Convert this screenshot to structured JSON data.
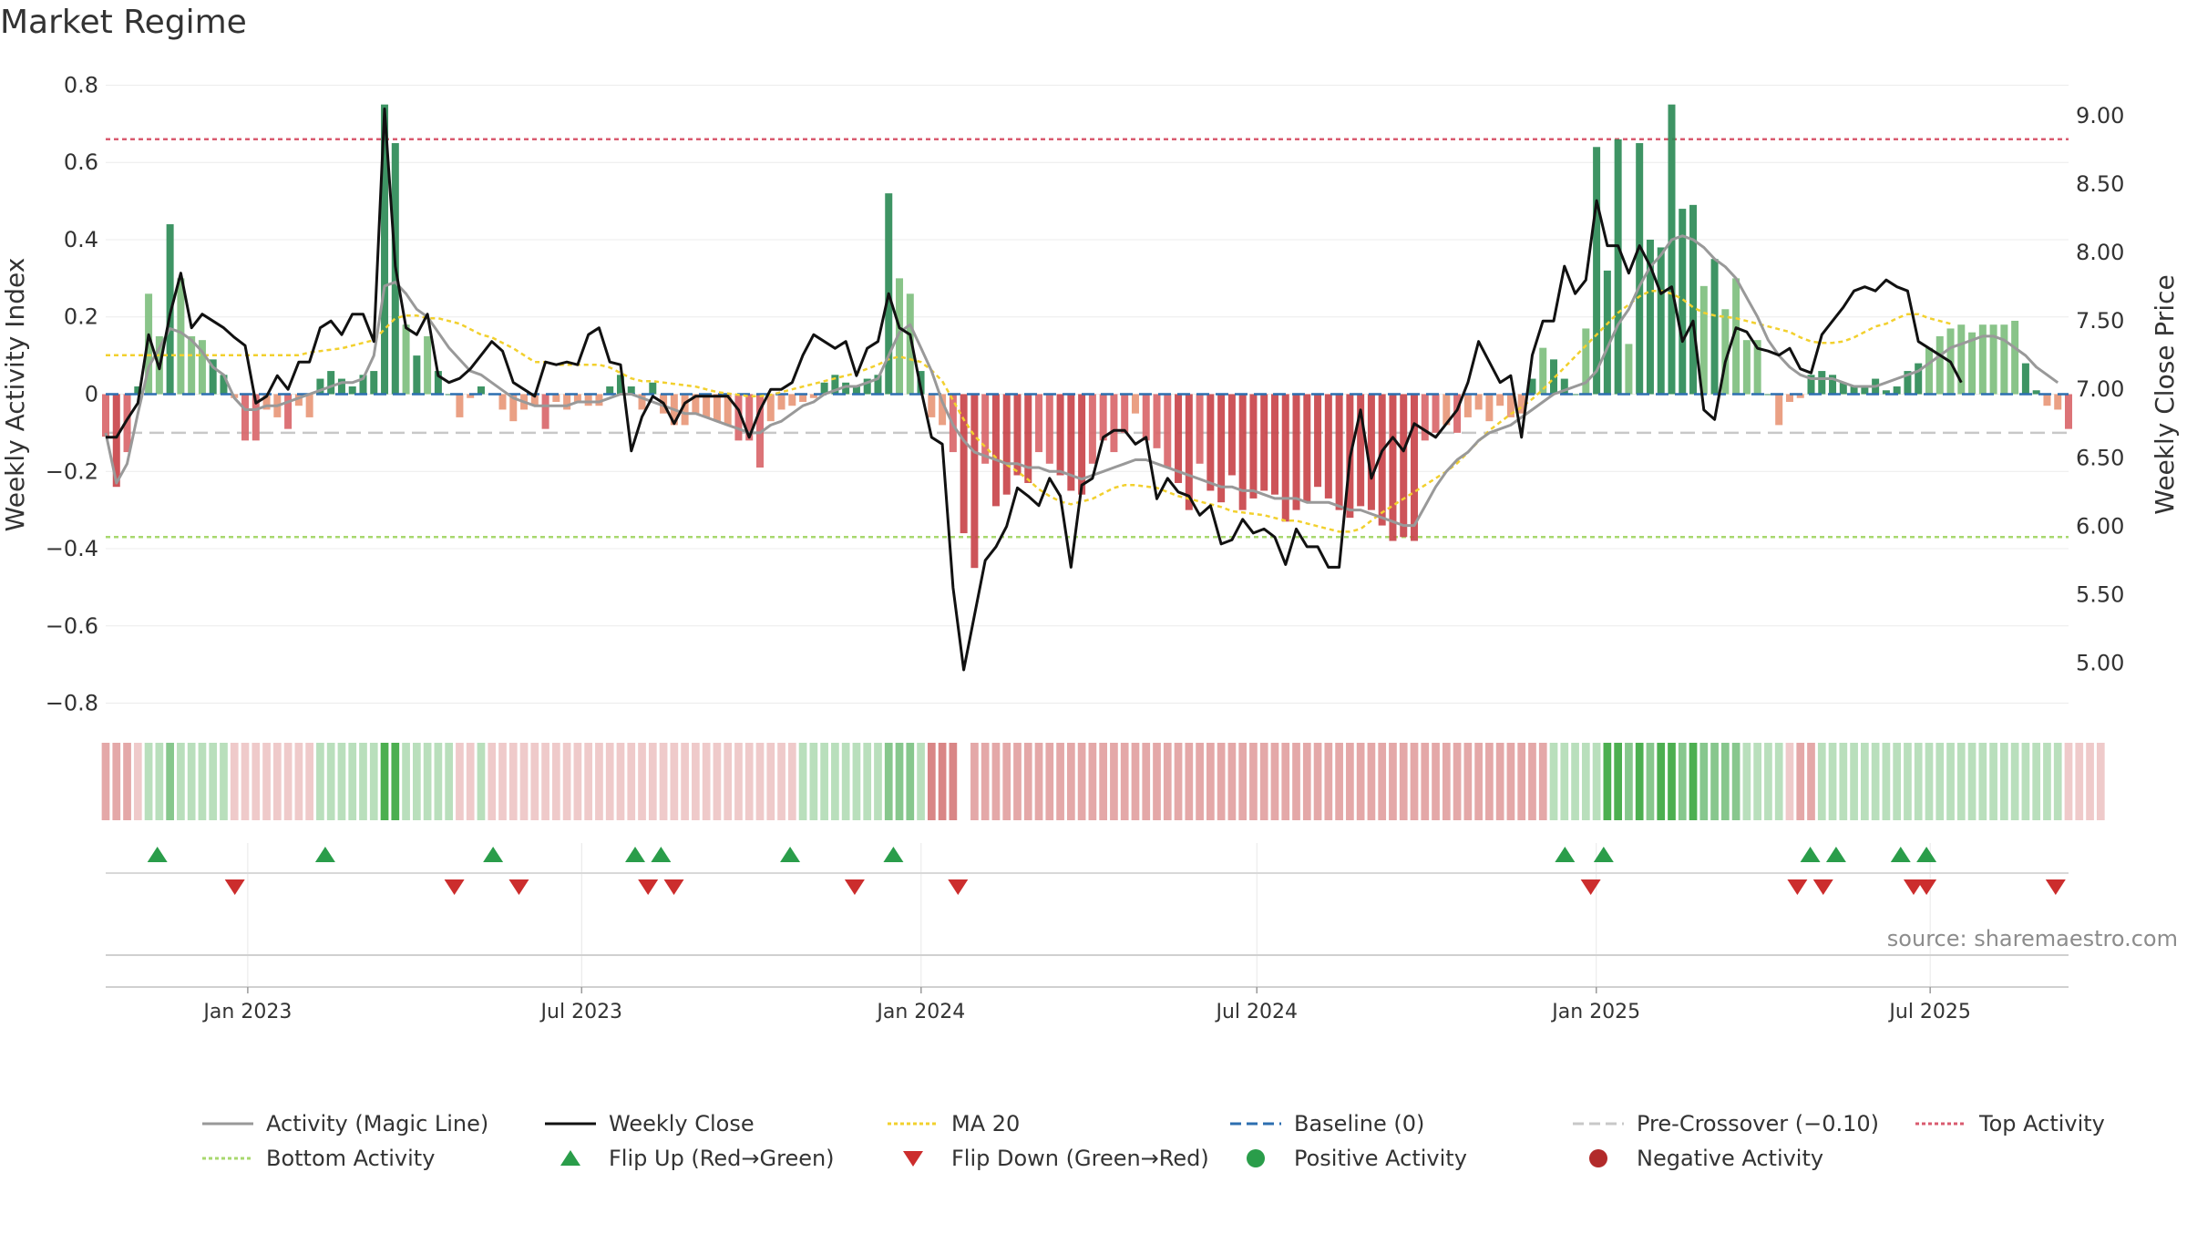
{
  "header": {
    "title": "Market Regime"
  },
  "source": "source: sharemaestro.com",
  "colors": {
    "strong_green": "#2e8b57",
    "green": "#4caf50",
    "light_green": "#7fbf7f",
    "strong_red": "#c9454b",
    "red": "#d9676b",
    "light_red": "#e8987a",
    "activity_line": "#999999",
    "close_line": "#111111",
    "ma_line": "#f2d02e",
    "baseline": "#2d6fb0",
    "pre_crossover": "#c8c8c8",
    "top_line": "#d95b6f",
    "bottom_line": "#a8d86e",
    "flip_up": "#2a9d4a",
    "flip_down": "#cc2d2d"
  },
  "chart_data": {
    "type": "bar",
    "ylabel": "Weekly Activity Index",
    "y2label": "Weekly Close Price",
    "ylim": [
      -0.82,
      0.82
    ],
    "y2lim": [
      4.65,
      9.28
    ],
    "yticks": [
      0.8,
      0.6,
      0.4,
      0.2,
      0,
      -0.2,
      -0.4,
      -0.6,
      -0.8
    ],
    "ytick_labels": [
      "0.8",
      "0.6",
      "0.4",
      "0.2",
      "0",
      "−0.2",
      "−0.4",
      "−0.6",
      "−0.8"
    ],
    "y2ticks": [
      9.0,
      8.5,
      8.0,
      7.5,
      7.0,
      6.5,
      6.0,
      5.5,
      5.0
    ],
    "y2tick_labels": [
      "9.00",
      "8.50",
      "8.00",
      "7.50",
      "7.00",
      "6.50",
      "6.00",
      "5.50",
      "5.00"
    ],
    "x_start": "2022-10-16",
    "x_end": "2025-09-14",
    "xticks": [
      {
        "date": "2023-01-01",
        "label": "Jan 2023"
      },
      {
        "date": "2023-07-01",
        "label": "Jul 2023"
      },
      {
        "date": "2024-01-01",
        "label": "Jan 2024"
      },
      {
        "date": "2024-07-01",
        "label": "Jul 2024"
      },
      {
        "date": "2025-01-01",
        "label": "Jan 2025"
      },
      {
        "date": "2025-07-01",
        "label": "Jul 2025"
      }
    ],
    "grid": true,
    "legend_position": "bottom",
    "reference_lines": {
      "top": 0.66,
      "bottom": -0.37,
      "baseline": 0,
      "pre_crossover": -0.1
    },
    "activity": [
      -0.11,
      -0.24,
      -0.15,
      0.02,
      0.26,
      0.15,
      0.44,
      0.3,
      0.15,
      0.14,
      0.09,
      0.05,
      -0.01,
      -0.12,
      -0.12,
      -0.04,
      -0.06,
      -0.09,
      -0.03,
      -0.06,
      0.04,
      0.06,
      0.04,
      0.02,
      0.05,
      0.06,
      0.75,
      0.65,
      0.18,
      0.1,
      0.15,
      0.06,
      0.0,
      -0.06,
      -0.01,
      0.02,
      0.0,
      -0.04,
      -0.07,
      -0.04,
      -0.03,
      -0.09,
      -0.02,
      -0.04,
      -0.02,
      -0.03,
      -0.03,
      0.02,
      0.05,
      0.02,
      -0.04,
      0.03,
      -0.05,
      -0.08,
      -0.08,
      -0.05,
      -0.06,
      -0.07,
      -0.08,
      -0.12,
      -0.12,
      -0.19,
      -0.07,
      -0.04,
      -0.03,
      -0.02,
      -0.01,
      0.03,
      0.05,
      0.03,
      0.02,
      0.04,
      0.05,
      0.52,
      0.3,
      0.26,
      0.06,
      -0.06,
      -0.08,
      -0.15,
      -0.36,
      -0.45,
      -0.18,
      -0.29,
      -0.26,
      -0.21,
      -0.23,
      -0.15,
      -0.18,
      -0.21,
      -0.25,
      -0.26,
      -0.18,
      -0.12,
      -0.15,
      -0.1,
      -0.05,
      -0.12,
      -0.14,
      -0.19,
      -0.23,
      -0.3,
      -0.18,
      -0.25,
      -0.28,
      -0.21,
      -0.3,
      -0.27,
      -0.25,
      -0.26,
      -0.33,
      -0.3,
      -0.28,
      -0.24,
      -0.27,
      -0.3,
      -0.32,
      -0.29,
      -0.3,
      -0.34,
      -0.38,
      -0.37,
      -0.38,
      -0.12,
      -0.1,
      -0.08,
      -0.1,
      -0.06,
      -0.04,
      -0.07,
      -0.03,
      -0.06,
      -0.05,
      0.04,
      0.12,
      0.09,
      0.04,
      0.0,
      0.17,
      0.64,
      0.32,
      0.66,
      0.13,
      0.65,
      0.4,
      0.38,
      0.75,
      0.48,
      0.49,
      0.28,
      0.35,
      0.22,
      0.3,
      0.14,
      0.14,
      0.0,
      -0.08,
      -0.02,
      -0.01,
      0.05,
      0.06,
      0.05,
      0.03,
      0.02,
      0.02,
      0.04,
      0.01,
      0.02,
      0.06,
      0.08,
      0.12,
      0.15,
      0.17,
      0.18,
      0.16,
      0.18,
      0.18,
      0.18,
      0.19,
      0.08,
      0.01,
      -0.03,
      -0.04,
      -0.09
    ],
    "activity_line": [
      -0.1,
      -0.23,
      -0.18,
      -0.05,
      0.07,
      0.12,
      0.17,
      0.16,
      0.14,
      0.11,
      0.07,
      0.05,
      -0.01,
      -0.04,
      -0.04,
      -0.03,
      -0.03,
      -0.02,
      -0.01,
      0.0,
      0.01,
      0.02,
      0.03,
      0.03,
      0.04,
      0.1,
      0.28,
      0.29,
      0.26,
      0.22,
      0.2,
      0.16,
      0.12,
      0.09,
      0.06,
      0.05,
      0.03,
      0.01,
      -0.01,
      -0.02,
      -0.03,
      -0.03,
      -0.03,
      -0.03,
      -0.02,
      -0.02,
      -0.02,
      -0.01,
      0.0,
      0.0,
      -0.01,
      -0.02,
      -0.03,
      -0.04,
      -0.05,
      -0.05,
      -0.06,
      -0.07,
      -0.08,
      -0.09,
      -0.1,
      -0.1,
      -0.08,
      -0.07,
      -0.05,
      -0.03,
      -0.02,
      0.0,
      0.01,
      0.02,
      0.02,
      0.03,
      0.04,
      0.1,
      0.16,
      0.18,
      0.12,
      0.06,
      -0.02,
      -0.08,
      -0.12,
      -0.15,
      -0.16,
      -0.17,
      -0.18,
      -0.18,
      -0.19,
      -0.19,
      -0.2,
      -0.2,
      -0.21,
      -0.22,
      -0.21,
      -0.2,
      -0.19,
      -0.18,
      -0.17,
      -0.17,
      -0.18,
      -0.19,
      -0.2,
      -0.21,
      -0.22,
      -0.23,
      -0.24,
      -0.24,
      -0.25,
      -0.25,
      -0.26,
      -0.27,
      -0.27,
      -0.27,
      -0.28,
      -0.28,
      -0.28,
      -0.29,
      -0.3,
      -0.3,
      -0.31,
      -0.32,
      -0.33,
      -0.34,
      -0.34,
      -0.29,
      -0.24,
      -0.2,
      -0.17,
      -0.15,
      -0.12,
      -0.1,
      -0.09,
      -0.08,
      -0.06,
      -0.04,
      -0.02,
      0.0,
      0.01,
      0.02,
      0.03,
      0.06,
      0.12,
      0.18,
      0.22,
      0.28,
      0.33,
      0.36,
      0.4,
      0.41,
      0.4,
      0.38,
      0.35,
      0.33,
      0.3,
      0.25,
      0.2,
      0.14,
      0.1,
      0.07,
      0.05,
      0.04,
      0.04,
      0.04,
      0.03,
      0.02,
      0.02,
      0.02,
      0.03,
      0.04,
      0.05,
      0.06,
      0.08,
      0.1,
      0.12,
      0.13,
      0.14,
      0.15,
      0.15,
      0.14,
      0.12,
      0.1,
      0.07,
      0.05,
      0.03
    ],
    "close": [
      6.65,
      6.65,
      6.78,
      6.9,
      7.4,
      7.15,
      7.55,
      7.85,
      7.45,
      7.55,
      7.5,
      7.45,
      7.38,
      7.32,
      6.9,
      6.95,
      7.1,
      7.0,
      7.2,
      7.2,
      7.45,
      7.5,
      7.4,
      7.55,
      7.55,
      7.35,
      9.05,
      7.9,
      7.45,
      7.4,
      7.55,
      7.1,
      7.05,
      7.08,
      7.15,
      7.25,
      7.35,
      7.28,
      7.05,
      7.0,
      6.95,
      7.2,
      7.18,
      7.2,
      7.18,
      7.4,
      7.45,
      7.2,
      7.18,
      6.55,
      6.8,
      6.95,
      6.9,
      6.75,
      6.9,
      6.95,
      6.95,
      6.95,
      6.95,
      6.85,
      6.65,
      6.85,
      7.0,
      7.0,
      7.05,
      7.25,
      7.4,
      7.35,
      7.3,
      7.35,
      7.1,
      7.3,
      7.35,
      7.7,
      7.45,
      7.4,
      7.0,
      6.65,
      6.6,
      5.55,
      4.95,
      5.35,
      5.75,
      5.85,
      6.0,
      6.28,
      6.22,
      6.15,
      6.35,
      6.22,
      5.7,
      6.3,
      6.35,
      6.65,
      6.7,
      6.7,
      6.6,
      6.65,
      6.2,
      6.35,
      6.25,
      6.22,
      6.08,
      6.15,
      5.87,
      5.9,
      6.05,
      5.95,
      5.98,
      5.92,
      5.72,
      5.98,
      5.85,
      5.85,
      5.7,
      5.7,
      6.5,
      6.85,
      6.35,
      6.55,
      6.65,
      6.55,
      6.75,
      6.7,
      6.65,
      6.75,
      6.85,
      7.05,
      7.35,
      7.2,
      7.05,
      7.1,
      6.65,
      7.25,
      7.5,
      7.5,
      7.9,
      7.7,
      7.8,
      8.38,
      8.05,
      8.05,
      7.85,
      8.05,
      7.9,
      7.7,
      7.75,
      7.35,
      7.5,
      6.85,
      6.78,
      7.2,
      7.45,
      7.42,
      7.3,
      7.28,
      7.25,
      7.3,
      7.15,
      7.12,
      7.4,
      7.5,
      7.6,
      7.72,
      7.75,
      7.72,
      7.8,
      7.75,
      7.72,
      7.35,
      7.3,
      7.25,
      7.2,
      7.05
    ],
    "ma20": [
      7.25,
      7.25,
      7.25,
      7.25,
      7.25,
      7.25,
      7.25,
      7.25,
      7.25,
      7.25,
      7.25,
      7.25,
      7.25,
      7.25,
      7.25,
      7.25,
      7.25,
      7.25,
      7.25,
      7.27,
      7.28,
      7.29,
      7.3,
      7.32,
      7.34,
      7.36,
      7.44,
      7.52,
      7.54,
      7.54,
      7.52,
      7.52,
      7.5,
      7.48,
      7.44,
      7.4,
      7.38,
      7.34,
      7.3,
      7.25,
      7.2,
      7.2,
      7.18,
      7.18,
      7.18,
      7.18,
      7.18,
      7.16,
      7.12,
      7.08,
      7.06,
      7.06,
      7.05,
      7.04,
      7.03,
      7.02,
      7.0,
      6.98,
      6.97,
      6.96,
      6.95,
      6.95,
      6.96,
      6.98,
      7.0,
      7.02,
      7.04,
      7.06,
      7.08,
      7.1,
      7.12,
      7.15,
      7.18,
      7.22,
      7.24,
      7.22,
      7.2,
      7.14,
      7.06,
      6.92,
      6.78,
      6.66,
      6.58,
      6.5,
      6.45,
      6.4,
      6.34,
      6.27,
      6.22,
      6.18,
      6.16,
      6.18,
      6.2,
      6.24,
      6.28,
      6.3,
      6.3,
      6.29,
      6.28,
      6.25,
      6.22,
      6.2,
      6.18,
      6.16,
      6.14,
      6.11,
      6.1,
      6.09,
      6.08,
      6.06,
      6.04,
      6.04,
      6.02,
      6.0,
      5.98,
      5.96,
      5.96,
      5.98,
      6.04,
      6.1,
      6.15,
      6.2,
      6.25,
      6.3,
      6.35,
      6.4,
      6.46,
      6.54,
      6.62,
      6.7,
      6.76,
      6.82,
      6.87,
      6.93,
      7.0,
      7.08,
      7.16,
      7.24,
      7.32,
      7.4,
      7.48,
      7.56,
      7.62,
      7.68,
      7.72,
      7.72,
      7.7,
      7.66,
      7.6,
      7.56,
      7.54,
      7.53,
      7.52,
      7.5,
      7.48,
      7.46,
      7.44,
      7.42,
      7.38,
      7.35,
      7.34,
      7.34,
      7.35,
      7.38,
      7.42,
      7.46,
      7.48,
      7.52,
      7.55,
      7.55,
      7.52,
      7.5,
      7.48
    ],
    "regime_strip": [
      -2,
      -2,
      -2,
      -1,
      1,
      1,
      2,
      1,
      1,
      1,
      1,
      1,
      -1,
      -1,
      -1,
      -1,
      -1,
      -1,
      -1,
      -1,
      1,
      1,
      1,
      1,
      1,
      1,
      3,
      3,
      1,
      1,
      1,
      1,
      1,
      -1,
      -1,
      1,
      -1,
      -1,
      -1,
      -1,
      -1,
      -1,
      -1,
      -1,
      -1,
      -1,
      -1,
      -1,
      -1,
      -1,
      -1,
      -1,
      -1,
      -1,
      -1,
      -1,
      -1,
      -1,
      -1,
      -1,
      -1,
      -1,
      -1,
      -1,
      -1,
      1,
      1,
      1,
      1,
      1,
      1,
      1,
      1,
      2,
      2,
      2,
      1,
      -3,
      -3,
      -3,
      null,
      -2,
      -2,
      -2,
      -2,
      -2,
      -2,
      -2,
      -2,
      -2,
      -2,
      -2,
      -2,
      -2,
      -2,
      -2,
      -2,
      -2,
      -2,
      -2,
      -2,
      -2,
      -2,
      -2,
      -2,
      -2,
      -2,
      -2,
      -2,
      -2,
      -2,
      -2,
      -2,
      -2,
      -2,
      -2,
      -2,
      -2,
      -2,
      -2,
      -2,
      -2,
      -2,
      -2,
      -2,
      -2,
      -2,
      -2,
      -2,
      -2,
      -2,
      -2,
      -2,
      -2,
      -2,
      1,
      1,
      1,
      1,
      1,
      3,
      3,
      2,
      3,
      2,
      3,
      3,
      2,
      3,
      2,
      2,
      2,
      2,
      1,
      1,
      1,
      1,
      -1,
      -2,
      -2,
      1,
      1,
      1,
      1,
      1,
      1,
      1,
      1,
      1,
      1,
      1,
      1,
      1,
      1,
      1,
      1,
      1,
      1,
      1,
      1,
      1,
      1,
      1,
      -1,
      -1,
      -1,
      -1
    ],
    "flip_up": [
      "2022-11-13",
      "2023-02-12",
      "2023-05-14",
      "2023-07-30",
      "2023-08-13",
      "2023-10-22",
      "2023-12-17",
      "2024-12-15",
      "2025-01-05",
      "2025-04-27",
      "2025-05-11",
      "2025-06-15",
      "2025-06-29"
    ],
    "flip_down": [
      "2022-12-25",
      "2023-04-23",
      "2023-05-28",
      "2023-08-06",
      "2023-08-20",
      "2023-11-26",
      "2024-01-21",
      "2024-12-29",
      "2025-04-20",
      "2025-05-04",
      "2025-06-22",
      "2025-06-29",
      "2025-09-07"
    ],
    "legend": [
      {
        "label": "Activity (Magic Line)",
        "kind": "line",
        "color": "#999999",
        "dash": ""
      },
      {
        "label": "Weekly Close",
        "kind": "line",
        "color": "#111111",
        "dash": ""
      },
      {
        "label": "MA 20",
        "kind": "line",
        "color": "#f2d02e",
        "dash": "4,3"
      },
      {
        "label": "Baseline (0)",
        "kind": "line",
        "color": "#2d6fb0",
        "dash": "12,6"
      },
      {
        "label": "Pre-Crossover (−0.10)",
        "kind": "line",
        "color": "#c8c8c8",
        "dash": "12,6"
      },
      {
        "label": "Top Activity",
        "kind": "line",
        "color": "#d95b6f",
        "dash": "4,3"
      },
      {
        "label": "Bottom Activity",
        "kind": "line",
        "color": "#a8d86e",
        "dash": "4,3"
      },
      {
        "label": "Flip Up (Red→Green)",
        "kind": "tri-up",
        "color": "#2a9d4a",
        "dash": ""
      },
      {
        "label": "Flip Down (Green→Red)",
        "kind": "tri-down",
        "color": "#cc2d2d",
        "dash": ""
      },
      {
        "label": "Positive Activity",
        "kind": "dot",
        "color": "#2a9d4a",
        "dash": ""
      },
      {
        "label": "Negative Activity",
        "kind": "dot",
        "color": "#b22a2a",
        "dash": ""
      }
    ]
  }
}
